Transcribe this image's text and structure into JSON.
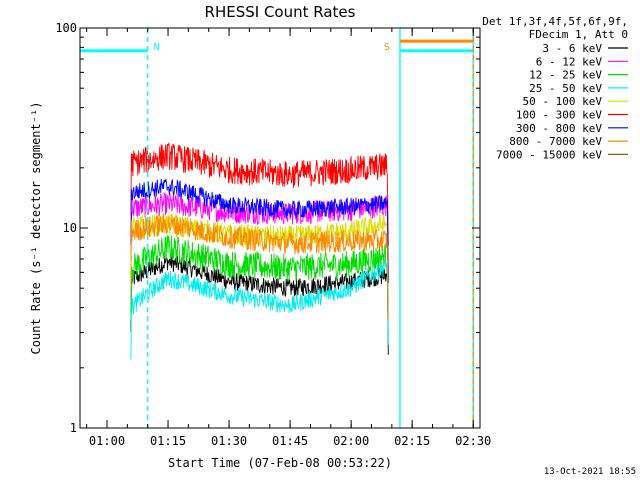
{
  "chart_data": {
    "type": "line",
    "title": "RHESSI Count Rates",
    "xlabel": "Start Time (07-Feb-08 00:53:22)",
    "ylabel": "Count Rate (s⁻¹ detector segment⁻¹)",
    "yscale": "log",
    "ylim": [
      1,
      100
    ],
    "xlim": [
      "00:53:22",
      "02:31:40"
    ],
    "x_ticks": [
      "01:00",
      "01:15",
      "01:30",
      "01:45",
      "02:00",
      "02:15",
      "02:30"
    ],
    "y_ticks": [
      "1",
      "10",
      "100"
    ],
    "grid": false,
    "legend_header": [
      "Det 1f,3f,4f,5f,6f,9f,",
      "FDecim 1, Att 0"
    ],
    "legend_position": "right",
    "timestamp": "13-Oct-2021 18:55",
    "series": [
      {
        "name": "3 - 6 keV",
        "color": "#000000",
        "x": [
          "01:06",
          "01:15",
          "01:30",
          "01:45",
          "02:00",
          "02:09"
        ],
        "y": [
          5.5,
          6.8,
          5.4,
          5.0,
          5.4,
          5.8
        ]
      },
      {
        "name": "6 - 12 keV",
        "color": "#ff00ff",
        "x": [
          "01:06",
          "01:15",
          "01:30",
          "01:45",
          "02:00",
          "02:09"
        ],
        "y": [
          12.5,
          13.2,
          12.0,
          11.8,
          12.3,
          13.0
        ]
      },
      {
        "name": "12 - 25 keV",
        "color": "#00dd00",
        "x": [
          "01:06",
          "01:15",
          "01:30",
          "01:45",
          "02:00",
          "02:09"
        ],
        "y": [
          6.3,
          8.0,
          6.6,
          6.3,
          6.6,
          7.3
        ]
      },
      {
        "name": "25 - 50 keV",
        "color": "#00eeee",
        "x": [
          "01:06",
          "01:15",
          "01:30",
          "01:45",
          "02:00",
          "02:09"
        ],
        "y": [
          4.0,
          5.6,
          4.6,
          4.1,
          5.0,
          6.5
        ]
      },
      {
        "name": "50 - 100 keV",
        "color": "#dddd00",
        "x": [
          "01:06",
          "01:15",
          "01:30",
          "01:45",
          "02:00",
          "02:09"
        ],
        "y": [
          10.0,
          10.5,
          9.2,
          9.0,
          9.6,
          10.5
        ]
      },
      {
        "name": "100 - 300 keV",
        "color": "#ff0000",
        "x": [
          "01:06",
          "01:15",
          "01:30",
          "01:45",
          "02:00",
          "02:09"
        ],
        "y": [
          21.0,
          23.0,
          19.5,
          18.5,
          19.5,
          20.5
        ]
      },
      {
        "name": "300 - 800 keV",
        "color": "#0000ff",
        "x": [
          "01:06",
          "01:15",
          "01:30",
          "01:45",
          "02:00",
          "02:09"
        ],
        "y": [
          15.0,
          16.2,
          13.0,
          12.3,
          12.8,
          13.3
        ]
      },
      {
        "name": "800 - 7000 keV",
        "color": "#ff8800",
        "x": [
          "01:06",
          "01:15",
          "01:30",
          "01:45",
          "02:00",
          "02:09"
        ],
        "y": [
          9.6,
          10.5,
          9.0,
          8.4,
          8.6,
          8.7
        ]
      },
      {
        "name": "7000 - 15000 keV",
        "color": "#886600",
        "x": [],
        "y": []
      }
    ],
    "annotations": [
      {
        "type": "attenuator_bar",
        "color": "#00ffff",
        "x_start": "00:53:22",
        "x_end": "01:10",
        "y": 77
      },
      {
        "type": "label",
        "text": "N",
        "color": "#00ffff",
        "x": "01:10"
      },
      {
        "type": "vertical_line",
        "color": "#00ffff",
        "x": "01:10",
        "style": "dashed"
      },
      {
        "type": "vertical_line",
        "color": "#00ffff",
        "x": "02:12",
        "style": "solid"
      },
      {
        "type": "label",
        "text": "S",
        "color": "#ff8800",
        "x": "02:11"
      },
      {
        "type": "attenuator_bar",
        "color": "#ff8800",
        "x_start": "02:12",
        "x_end": "02:30",
        "y": 86
      },
      {
        "type": "attenuator_bar",
        "color": "#00ffff",
        "x_start": "02:12",
        "x_end": "02:30",
        "y": 77
      },
      {
        "type": "vertical_line",
        "color": "#00ffff",
        "x": "02:30",
        "style": "solid"
      },
      {
        "type": "vertical_line",
        "color": "#ff8800",
        "x": "02:30",
        "style": "dashed"
      }
    ]
  }
}
